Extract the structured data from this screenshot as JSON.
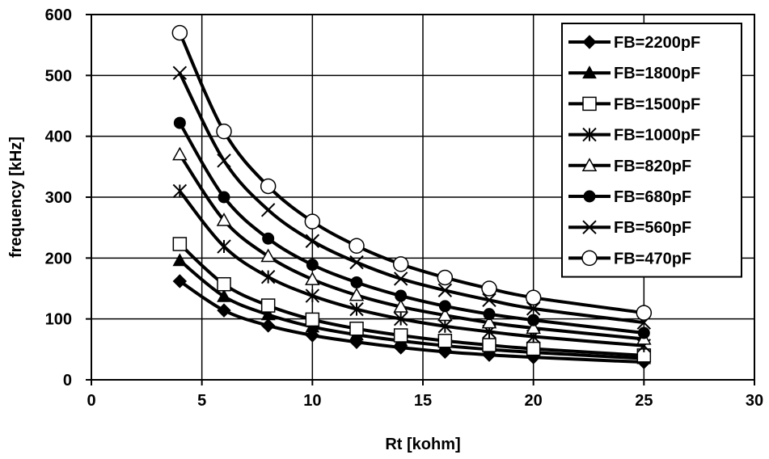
{
  "chart_data": {
    "type": "line",
    "title": "",
    "xlabel": "Rt [kohm]",
    "ylabel": "frequency [kHz]",
    "xlim": [
      0,
      30
    ],
    "ylim": [
      0,
      600
    ],
    "xticks": [
      0,
      5,
      10,
      15,
      20,
      25,
      30
    ],
    "yticks": [
      0,
      100,
      200,
      300,
      400,
      500,
      600
    ],
    "grid": "both",
    "legend_position": "top-right",
    "x": [
      4,
      6,
      8,
      10,
      12,
      14,
      16,
      18,
      20,
      25
    ],
    "series": [
      {
        "name": "FB=2200pF",
        "marker": "diamond-filled",
        "values": [
          162,
          114,
          89,
          73,
          62,
          53,
          46,
          41,
          37,
          29
        ]
      },
      {
        "name": "FB=1800pF",
        "marker": "triangle-filled",
        "values": [
          196,
          137,
          107,
          87,
          74,
          64,
          56,
          50,
          45,
          35
        ]
      },
      {
        "name": "FB=1500pF",
        "marker": "square-open",
        "values": [
          223,
          157,
          122,
          99,
          84,
          73,
          64,
          57,
          51,
          40
        ]
      },
      {
        "name": "FB=1000pF",
        "marker": "star",
        "values": [
          310,
          219,
          169,
          138,
          116,
          100,
          88,
          79,
          71,
          56
        ]
      },
      {
        "name": "FB=820pF",
        "marker": "triangle-open",
        "values": [
          370,
          262,
          203,
          165,
          139,
          120,
          106,
          94,
          85,
          67
        ]
      },
      {
        "name": "FB=680pF",
        "marker": "circle-filled",
        "values": [
          422,
          300,
          232,
          189,
          160,
          138,
          121,
          108,
          98,
          77
        ]
      },
      {
        "name": "FB=560pF",
        "marker": "x",
        "values": [
          504,
          360,
          279,
          228,
          193,
          166,
          147,
          131,
          117,
          94
        ]
      },
      {
        "name": "FB=470pF",
        "marker": "circle-open",
        "values": [
          570,
          408,
          318,
          260,
          220,
          190,
          168,
          150,
          135,
          110
        ]
      }
    ]
  }
}
